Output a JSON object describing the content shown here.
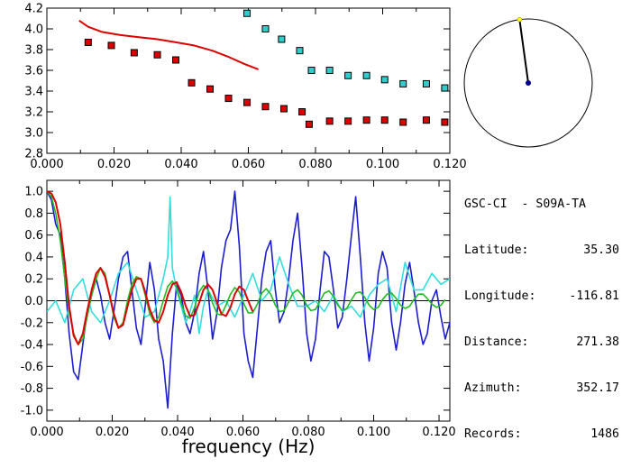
{
  "station": {
    "title": "GSC-CI  - S09A-TA",
    "rows": [
      {
        "label": "Latitude:",
        "value": "35.30"
      },
      {
        "label": "Longitude:",
        "value": "-116.81"
      },
      {
        "label": "Distance:",
        "value": "271.38"
      },
      {
        "label": "Azimuth:",
        "value": "352.17"
      },
      {
        "label": "Records:",
        "value": "1486"
      }
    ]
  },
  "compass": {
    "azimuth_deg": 352.17,
    "needle_color": "#000000",
    "tip_color": "#ffff00",
    "center_color": "#00008b"
  },
  "chart_data": [
    {
      "type": "scatter",
      "title": "",
      "xlabel": "",
      "ylabel": "",
      "xlim": [
        0.0,
        0.12
      ],
      "ylim": [
        2.8,
        4.2
      ],
      "xticks": [
        "0.000",
        "0.020",
        "0.040",
        "0.060",
        "0.080",
        "0.100",
        "0.120"
      ],
      "yticks": [
        "2.8",
        "3.0",
        "3.2",
        "3.4",
        "3.6",
        "3.8",
        "4.0",
        "4.2"
      ],
      "series": [
        {
          "color": "#dd0000",
          "marker": "square",
          "x": [
            0.0123,
            0.0192,
            0.026,
            0.0329,
            0.0384,
            0.0431,
            0.0486,
            0.0541,
            0.0596,
            0.0651,
            0.0706,
            0.076,
            0.0781,
            0.0842,
            0.0897,
            0.0952,
            0.1006,
            0.1061,
            0.113,
            0.1185
          ],
          "y": [
            3.87,
            3.84,
            3.77,
            3.75,
            3.7,
            3.48,
            3.42,
            3.33,
            3.29,
            3.25,
            3.23,
            3.2,
            3.08,
            3.11,
            3.11,
            3.12,
            3.12,
            3.1,
            3.12,
            3.1
          ]
        },
        {
          "color": "#33cccc",
          "marker": "square",
          "x": [
            0.0596,
            0.0651,
            0.0699,
            0.0753,
            0.0788,
            0.0842,
            0.0897,
            0.0952,
            0.1006,
            0.1061,
            0.113,
            0.1185
          ],
          "y": [
            4.15,
            4.0,
            3.9,
            3.79,
            3.6,
            3.6,
            3.55,
            3.55,
            3.51,
            3.47,
            3.47,
            3.43
          ]
        },
        {
          "color": "#dd0000",
          "marker": "line",
          "x": [
            0.0096,
            0.0123,
            0.0164,
            0.0219,
            0.0274,
            0.0329,
            0.0384,
            0.0438,
            0.0493,
            0.0541,
            0.0589,
            0.063
          ],
          "y": [
            4.08,
            4.02,
            3.97,
            3.94,
            3.92,
            3.9,
            3.87,
            3.84,
            3.79,
            3.73,
            3.66,
            3.61
          ]
        }
      ]
    },
    {
      "type": "line",
      "title": "",
      "xlabel": "frequency  (Hz)",
      "ylabel": "",
      "xlim": [
        0.0,
        0.1233
      ],
      "ylim": [
        -1.1,
        1.1
      ],
      "xticks": [
        "0.000",
        "0.020",
        "0.040",
        "0.060",
        "0.080",
        "0.100",
        "0.120"
      ],
      "yticks": [
        "-1.0",
        "-0.8",
        "-0.6",
        "-0.4",
        "-0.2",
        "0.0",
        "0.2",
        "0.4",
        "0.6",
        "0.8",
        "1.0"
      ],
      "series": [
        {
          "color": "#1c1cd0",
          "x": [
            0.0,
            0.0014,
            0.0027,
            0.0041,
            0.0055,
            0.0068,
            0.0082,
            0.0096,
            0.011,
            0.0123,
            0.0137,
            0.0151,
            0.0164,
            0.0178,
            0.0192,
            0.0205,
            0.0219,
            0.0233,
            0.0247,
            0.026,
            0.0274,
            0.0288,
            0.0301,
            0.0315,
            0.0329,
            0.0342,
            0.0356,
            0.037,
            0.0384,
            0.0397,
            0.0411,
            0.0425,
            0.0438,
            0.0452,
            0.0466,
            0.0479,
            0.0493,
            0.0507,
            0.0521,
            0.0534,
            0.0548,
            0.0562,
            0.0575,
            0.0589,
            0.0603,
            0.0616,
            0.063,
            0.0644,
            0.0658,
            0.0671,
            0.0685,
            0.0699,
            0.0712,
            0.0726,
            0.074,
            0.0753,
            0.0767,
            0.0781,
            0.0795,
            0.0808,
            0.0822,
            0.0836,
            0.0849,
            0.0863,
            0.0877,
            0.089,
            0.0904,
            0.0918,
            0.0932,
            0.0945,
            0.0959,
            0.0973,
            0.0986,
            0.1,
            0.1014,
            0.1027,
            0.1041,
            0.1055,
            0.1069,
            0.1082,
            0.1096,
            0.111,
            0.1123,
            0.1137,
            0.1151,
            0.1164,
            0.1178,
            0.1192,
            0.1206,
            0.1219,
            0.1233
          ],
          "y": [
            1.0,
            0.92,
            0.7,
            0.6,
            0.2,
            -0.3,
            -0.65,
            -0.72,
            -0.4,
            -0.1,
            0.05,
            0.2,
            0.05,
            -0.2,
            -0.35,
            -0.1,
            0.2,
            0.4,
            0.45,
            0.1,
            -0.25,
            -0.4,
            -0.05,
            0.35,
            0.1,
            -0.35,
            -0.55,
            -0.98,
            -0.3,
            0.15,
            0.05,
            -0.2,
            -0.3,
            -0.1,
            0.25,
            0.45,
            0.1,
            -0.35,
            -0.1,
            0.3,
            0.55,
            0.65,
            1.0,
            0.5,
            -0.3,
            -0.55,
            -0.7,
            -0.25,
            0.2,
            0.45,
            0.55,
            0.1,
            -0.2,
            -0.1,
            0.2,
            0.55,
            0.8,
            0.3,
            -0.3,
            -0.55,
            -0.35,
            0.1,
            0.45,
            0.4,
            0.1,
            -0.25,
            -0.15,
            0.2,
            0.6,
            0.95,
            0.4,
            -0.2,
            -0.55,
            -0.25,
            0.25,
            0.45,
            0.3,
            -0.2,
            -0.45,
            -0.2,
            0.15,
            0.35,
            0.1,
            -0.2,
            -0.4,
            -0.3,
            0.0,
            0.1,
            -0.15,
            -0.35,
            -0.2
          ]
        },
        {
          "color": "#33dddd",
          "x": [
            0.0,
            0.0027,
            0.0055,
            0.0082,
            0.011,
            0.0137,
            0.0164,
            0.0192,
            0.0219,
            0.0247,
            0.0274,
            0.0301,
            0.0329,
            0.0356,
            0.037,
            0.0377,
            0.0384,
            0.0397,
            0.0411,
            0.0425,
            0.0438,
            0.0452,
            0.0466,
            0.0479,
            0.0493,
            0.0521,
            0.0548,
            0.0575,
            0.0603,
            0.063,
            0.0658,
            0.0685,
            0.0712,
            0.074,
            0.0767,
            0.0795,
            0.0822,
            0.0849,
            0.0877,
            0.0904,
            0.0932,
            0.0959,
            0.0986,
            0.1014,
            0.1041,
            0.1069,
            0.1096,
            0.1123,
            0.1151,
            0.1178,
            0.1206,
            0.1233
          ],
          "y": [
            -0.1,
            0.0,
            -0.2,
            0.1,
            0.2,
            -0.1,
            -0.2,
            0.0,
            0.25,
            0.35,
            0.1,
            -0.15,
            -0.1,
            0.2,
            0.4,
            0.95,
            0.3,
            0.1,
            -0.05,
            -0.2,
            -0.1,
            0.05,
            -0.3,
            -0.05,
            0.1,
            -0.05,
            0.0,
            -0.15,
            0.05,
            0.25,
            0.0,
            0.1,
            0.4,
            0.15,
            -0.05,
            -0.05,
            0.0,
            -0.1,
            0.05,
            -0.1,
            -0.05,
            -0.15,
            0.05,
            0.15,
            0.2,
            -0.1,
            0.35,
            0.1,
            0.1,
            0.25,
            0.15,
            0.2
          ]
        },
        {
          "color": "#22bb22",
          "x": [
            0.0,
            0.0014,
            0.0027,
            0.0041,
            0.0055,
            0.0068,
            0.0082,
            0.0096,
            0.011,
            0.0123,
            0.0137,
            0.0151,
            0.0164,
            0.0178,
            0.0192,
            0.0205,
            0.0219,
            0.0233,
            0.0247,
            0.026,
            0.0274,
            0.0288,
            0.0301,
            0.0315,
            0.0329,
            0.0342,
            0.0356,
            0.037,
            0.0384,
            0.0397,
            0.0411,
            0.0425,
            0.0438,
            0.0452,
            0.0466,
            0.0479,
            0.0493,
            0.0507,
            0.0521,
            0.0534,
            0.0548,
            0.0562,
            0.0575,
            0.0589,
            0.0603,
            0.0616,
            0.063,
            0.0644,
            0.0658,
            0.0671,
            0.0685,
            0.0699,
            0.0712,
            0.0726,
            0.074,
            0.0753,
            0.0767,
            0.0781,
            0.0795,
            0.0808,
            0.0822,
            0.0836,
            0.0849,
            0.0863,
            0.0877,
            0.089,
            0.0904,
            0.0918,
            0.0932,
            0.0945,
            0.0959,
            0.0973,
            0.0986,
            0.1,
            0.1014,
            0.1027,
            0.1041,
            0.1055,
            0.1069,
            0.1082,
            0.1096,
            0.111,
            0.1123,
            0.1137,
            0.1151,
            0.1164,
            0.1178,
            0.1192,
            0.1206,
            0.1219
          ],
          "y": [
            1.0,
            0.95,
            0.8,
            0.55,
            0.2,
            -0.1,
            -0.3,
            -0.4,
            -0.35,
            -0.15,
            0.05,
            0.2,
            0.3,
            0.25,
            0.05,
            -0.15,
            -0.25,
            -0.2,
            0.0,
            0.15,
            0.22,
            0.2,
            0.05,
            -0.12,
            -0.2,
            -0.15,
            0.0,
            0.13,
            0.18,
            0.12,
            -0.02,
            -0.14,
            -0.16,
            -0.06,
            0.08,
            0.14,
            0.1,
            -0.02,
            -0.12,
            -0.13,
            -0.04,
            0.06,
            0.12,
            0.08,
            -0.03,
            -0.11,
            -0.11,
            -0.03,
            0.07,
            0.11,
            0.06,
            -0.04,
            -0.1,
            -0.09,
            -0.01,
            0.07,
            0.1,
            0.05,
            -0.04,
            -0.09,
            -0.08,
            0.0,
            0.07,
            0.09,
            0.04,
            -0.04,
            -0.09,
            -0.07,
            0.01,
            0.07,
            0.08,
            0.03,
            -0.04,
            -0.08,
            -0.06,
            0.01,
            0.06,
            0.07,
            0.02,
            -0.04,
            -0.07,
            -0.05,
            0.01,
            0.06,
            0.06,
            0.02,
            -0.03,
            -0.06,
            -0.04,
            0.01
          ]
        },
        {
          "color": "#dd0000",
          "x": [
            0.0,
            0.0014,
            0.0027,
            0.0041,
            0.0055,
            0.0068,
            0.0082,
            0.0096,
            0.011,
            0.0123,
            0.0137,
            0.0151,
            0.0164,
            0.0178,
            0.0192,
            0.0205,
            0.0219,
            0.0233,
            0.0247,
            0.026,
            0.0274,
            0.0288,
            0.0301,
            0.0315,
            0.0329,
            0.0342,
            0.0356,
            0.037,
            0.0384,
            0.0397,
            0.0411,
            0.0425,
            0.0438,
            0.0452,
            0.0466,
            0.0479,
            0.0493,
            0.0507,
            0.0521,
            0.0534,
            0.0548,
            0.0562,
            0.0575,
            0.0589,
            0.0603,
            0.0616,
            0.063
          ],
          "y": [
            1.0,
            0.98,
            0.9,
            0.7,
            0.35,
            -0.05,
            -0.32,
            -0.4,
            -0.3,
            -0.1,
            0.1,
            0.25,
            0.3,
            0.22,
            0.05,
            -0.12,
            -0.25,
            -0.22,
            -0.05,
            0.1,
            0.2,
            0.2,
            0.08,
            -0.08,
            -0.18,
            -0.2,
            -0.1,
            0.05,
            0.15,
            0.17,
            0.08,
            -0.05,
            -0.14,
            -0.13,
            -0.02,
            0.1,
            0.15,
            0.1,
            -0.02,
            -0.12,
            -0.14,
            -0.06,
            0.06,
            0.13,
            0.1,
            0.0,
            -0.1
          ]
        }
      ]
    }
  ]
}
